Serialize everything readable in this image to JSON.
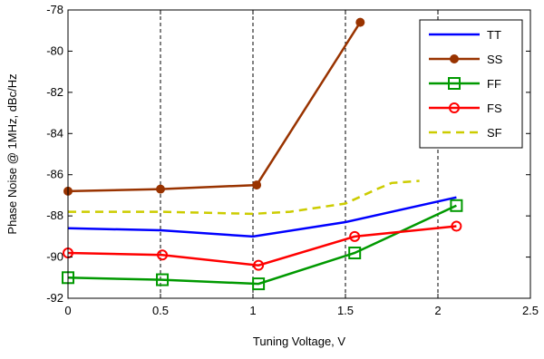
{
  "chart_data": {
    "type": "line",
    "title": "",
    "xlabel": "Tuning Voltage, V",
    "ylabel": "Phase Noise @ 1MHz, dBc/Hz",
    "xlim": [
      0,
      2.5
    ],
    "ylim": [
      -92,
      -78
    ],
    "x_ticks": [
      0,
      0.5,
      1,
      1.5,
      2,
      2.5
    ],
    "x_tick_labels": [
      "0",
      "0.5",
      "1",
      "1.5",
      "2",
      "2.5"
    ],
    "y_ticks": [
      -92,
      -90,
      -88,
      -86,
      -84,
      -82,
      -80,
      -78
    ],
    "y_tick_labels": [
      "-92",
      "-90",
      "-88",
      "-86",
      "-84",
      "-82",
      "-80",
      "-78"
    ],
    "vertical_gridlines_at": [
      0.5,
      1,
      1.5,
      2
    ],
    "legend_position": "top-right",
    "series": [
      {
        "name": "TT",
        "color": "#0000ff",
        "line_style": "solid",
        "marker": "none",
        "x": [
          0,
          0.5,
          1.0,
          1.5,
          2.1
        ],
        "y": [
          -88.6,
          -88.7,
          -89.0,
          -88.3,
          -87.1
        ]
      },
      {
        "name": "SS",
        "color": "#993300",
        "line_style": "solid",
        "marker": "dot",
        "x": [
          0,
          0.5,
          1.02,
          1.58
        ],
        "y": [
          -86.8,
          -86.7,
          -86.5,
          -78.6
        ]
      },
      {
        "name": "FF",
        "color": "#009900",
        "line_style": "solid",
        "marker": "square",
        "x": [
          0,
          0.51,
          1.03,
          1.55,
          2.1
        ],
        "y": [
          -91.0,
          -91.1,
          -91.3,
          -89.8,
          -87.5
        ]
      },
      {
        "name": "FS",
        "color": "#ff0000",
        "line_style": "solid",
        "marker": "circle",
        "x": [
          0,
          0.51,
          1.03,
          1.55,
          2.1
        ],
        "y": [
          -89.8,
          -89.9,
          -90.4,
          -89.0,
          -88.5
        ]
      },
      {
        "name": "SF",
        "color": "#cccc00",
        "line_style": "dashed",
        "marker": "none",
        "x": [
          0,
          0.5,
          1.0,
          1.2,
          1.5,
          1.67,
          1.75,
          1.9
        ],
        "y": [
          -87.8,
          -87.8,
          -87.9,
          -87.8,
          -87.4,
          -86.7,
          -86.4,
          -86.3
        ]
      }
    ]
  }
}
